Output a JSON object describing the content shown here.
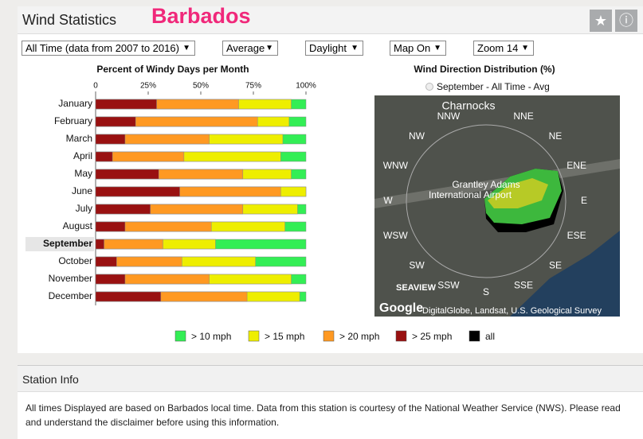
{
  "header": {
    "title": "Wind Statistics",
    "location": "Barbados"
  },
  "controls": [
    "All Time (data from 2007 to 2016)",
    "Average",
    "Daylight",
    "Map On",
    "Zoom 14"
  ],
  "chart_data": {
    "type": "bar",
    "orientation": "horizontal",
    "title": "Percent of Windy Days per Month",
    "categories": [
      "January",
      "February",
      "March",
      "April",
      "May",
      "June",
      "July",
      "August",
      "September",
      "October",
      "November",
      "December"
    ],
    "highlight": "September",
    "series": [
      {
        "name": "> 10 mph",
        "color": "#33ee55",
        "values": [
          100,
          100,
          100,
          100,
          100,
          100,
          100,
          100,
          100,
          100,
          100,
          100
        ]
      },
      {
        "name": "> 15 mph",
        "color": "#eeee00",
        "values": [
          93,
          92,
          89,
          88,
          93,
          100,
          96,
          90,
          57,
          76,
          93,
          97
        ]
      },
      {
        "name": "> 20 mph",
        "color": "#ff9922",
        "values": [
          68,
          77,
          54,
          42,
          70,
          88,
          70,
          55,
          32,
          41,
          54,
          72
        ]
      },
      {
        "name": "> 25 mph",
        "color": "#991111",
        "values": [
          29,
          19,
          14,
          8,
          30,
          40,
          26,
          14,
          4,
          10,
          14,
          31
        ]
      }
    ],
    "xlim": [
      0,
      100
    ],
    "xticks": [
      0,
      {
        "value": 25,
        "label": "25%"
      },
      {
        "value": 50,
        "label": "50%"
      },
      {
        "value": 75,
        "label": "75%"
      },
      {
        "value": 100,
        "label": "100%"
      }
    ]
  },
  "map": {
    "title": "Wind Direction Distribution (%)",
    "selection": "September - All Time - Avg",
    "compass": [
      "NNW",
      "NNE",
      "NW",
      "NE",
      "WNW",
      "ENE",
      "W",
      "E",
      "WSW",
      "ESE",
      "SW",
      "SE",
      "SSW",
      "SSE",
      "S"
    ],
    "places": [
      "Charnocks",
      "Grantley Adams",
      "International Airport",
      "SEAVIEW"
    ],
    "logo": "Google",
    "attribution": "DigitalGlobe, Landsat, U.S. Geological Survey"
  },
  "legend_extra": {
    "name": "all",
    "color": "#000000"
  },
  "station_info": {
    "title": "Station Info",
    "text": "All times Displayed are based on Barbados local time. Data from this station is courtesy of the National Weather Service (NWS). Please read and understand the disclaimer before using this information."
  }
}
